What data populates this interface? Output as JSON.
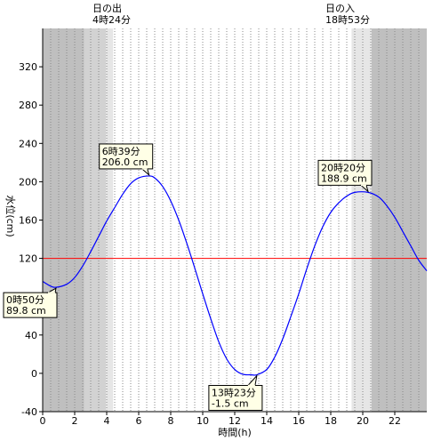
{
  "chart_data": {
    "type": "line",
    "xlabel": "時間(h)",
    "ylabel": "水位(cm)",
    "xlim": [
      0,
      24
    ],
    "ylim": [
      -40,
      360
    ],
    "x_ticks": [
      0,
      2,
      4,
      6,
      8,
      10,
      12,
      14,
      16,
      18,
      20,
      22
    ],
    "y_ticks": [
      -40,
      0,
      40,
      80,
      120,
      160,
      200,
      240,
      280,
      320
    ],
    "grid": {
      "vertical_dotted_every_hours": 0.5
    },
    "sunrise": {
      "label": "日の出",
      "time_text": "4時24分",
      "hour": 4.4
    },
    "sunset": {
      "label": "日の入",
      "time_text": "18時53分",
      "hour": 18.883
    },
    "twilight_bands": [
      {
        "from": 0,
        "to": 2.6,
        "shade": "night"
      },
      {
        "from": 2.6,
        "to": 3.95,
        "shade": "dusk"
      },
      {
        "from": 3.95,
        "to": 4.4,
        "shade": "twilight"
      },
      {
        "from": 19.3,
        "to": 20.55,
        "shade": "twilight"
      },
      {
        "from": 20.55,
        "to": 24,
        "shade": "night"
      }
    ],
    "reference_line": {
      "value": 120,
      "color": "#ff0000"
    },
    "series": [
      {
        "color": "#0000ff",
        "x": [
          0,
          0.5,
          0.833,
          1.5,
          2,
          2.5,
          3,
          3.5,
          4,
          4.5,
          5,
          5.5,
          6,
          6.65,
          7,
          7.5,
          8,
          8.5,
          9,
          9.5,
          10,
          10.5,
          11,
          11.5,
          12,
          12.5,
          13,
          13.383,
          14,
          14.5,
          15,
          15.5,
          16,
          16.5,
          17,
          17.5,
          18,
          18.5,
          19,
          19.5,
          20.333,
          21,
          21.5,
          22,
          22.5,
          23,
          23.5,
          24
        ],
        "y": [
          96,
          91,
          89.8,
          93,
          100,
          112,
          127,
          143,
          159,
          173,
          187,
          198,
          204,
          206,
          204,
          195,
          180,
          160,
          136,
          110,
          83,
          57,
          33,
          15,
          4,
          -1,
          -1.5,
          -1.5,
          4,
          17,
          36,
          59,
          83,
          109,
          133,
          153,
          168,
          178,
          185,
          188.9,
          188.9,
          184,
          175,
          163,
          148,
          133,
          118,
          107
        ]
      }
    ],
    "annotations": [
      {
        "kind": "high",
        "time_text": "6時39分",
        "value_text": "206.0 cm",
        "hour": 6.65,
        "value": 206.0
      },
      {
        "kind": "low",
        "time_text": "0時50分",
        "value_text": "89.8 cm",
        "hour": 0.833,
        "value": 89.8
      },
      {
        "kind": "low",
        "time_text": "13時23分",
        "value_text": "-1.5 cm",
        "hour": 13.383,
        "value": -1.5
      },
      {
        "kind": "high",
        "time_text": "20時20分",
        "value_text": "188.9 cm",
        "hour": 20.333,
        "value": 188.9
      }
    ],
    "colors": {
      "night": "#bfbfbf",
      "dusk": "#d2d2d2",
      "twilight": "#e6e6e6",
      "day": "#ffffff",
      "grid": "#888888",
      "callout_fill": "#ffffe6"
    }
  }
}
